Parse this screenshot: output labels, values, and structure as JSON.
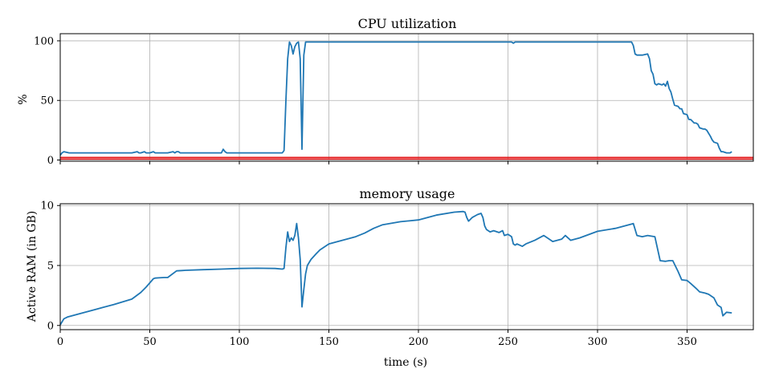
{
  "chart_data": [
    {
      "type": "line",
      "title": "CPU utilization",
      "xlabel": "",
      "ylabel": "%",
      "xlim": [
        0,
        387
      ],
      "ylim": [
        -1,
        106
      ],
      "xticks": [
        0,
        50,
        100,
        150,
        200,
        250,
        300,
        350
      ],
      "yticks": [
        0,
        50,
        100
      ],
      "xtick_labels_visible": false,
      "grid": true,
      "line_color": "#1f77b4",
      "reference_band": {
        "y0": 0.8,
        "y1": 2.2,
        "color": "#e41a1c"
      },
      "series": [
        {
          "x": [
            0,
            1,
            2,
            5,
            10,
            20,
            30,
            40,
            43,
            44,
            45,
            47,
            48,
            49,
            50,
            52,
            53,
            54,
            60,
            63,
            64,
            65,
            66,
            67,
            68,
            70,
            80,
            90,
            91,
            92,
            93,
            95,
            100,
            110,
            120,
            124,
            125,
            126,
            127,
            128,
            129,
            130,
            131,
            132,
            133,
            134,
            135,
            136,
            137,
            138,
            140,
            150,
            200,
            250,
            252,
            253,
            254,
            260,
            300,
            319,
            320,
            321,
            322,
            325,
            328,
            329,
            330,
            331,
            332,
            333,
            334,
            336,
            337,
            338,
            339,
            340,
            341,
            342,
            343,
            345,
            346,
            347,
            348,
            350,
            351,
            352,
            354,
            355,
            356,
            357,
            359,
            360,
            361,
            363,
            364,
            365,
            367,
            368,
            369,
            370,
            372,
            373,
            374,
            375
          ],
          "y": [
            4,
            6,
            7,
            6,
            6,
            6,
            6,
            6,
            7,
            6,
            6,
            7,
            6,
            6,
            6,
            7,
            6,
            6,
            6,
            7,
            6,
            7,
            7,
            6,
            6,
            6,
            6,
            6,
            9,
            7,
            6,
            6,
            6,
            6,
            6,
            6,
            8,
            50,
            85,
            99,
            96,
            89,
            95,
            98,
            99,
            85,
            9,
            88,
            99,
            99,
            99,
            99,
            99,
            99,
            99,
            98,
            99,
            99,
            99,
            99,
            96,
            89,
            88,
            88,
            89,
            85,
            75,
            72,
            64,
            63,
            64,
            63,
            64,
            62,
            66,
            60,
            57,
            51,
            46,
            45,
            43,
            43,
            39,
            38,
            34,
            34,
            31,
            31,
            30,
            27,
            26,
            26,
            25,
            20,
            17,
            15,
            14,
            10,
            7,
            7,
            6,
            6,
            6,
            7
          ]
        }
      ]
    },
    {
      "type": "line",
      "title": "memory usage",
      "xlabel": "time (s)",
      "ylabel": "Active RAM (in GB)",
      "xlim": [
        0,
        387
      ],
      "ylim": [
        -0.35,
        10.15
      ],
      "xticks": [
        0,
        50,
        100,
        150,
        200,
        250,
        300,
        350
      ],
      "yticks": [
        0,
        5,
        10
      ],
      "grid": true,
      "line_color": "#1f77b4",
      "series": [
        {
          "x": [
            0,
            2,
            4,
            10,
            20,
            30,
            40,
            45,
            48,
            52,
            53,
            55,
            58,
            60,
            65,
            68,
            70,
            80,
            90,
            100,
            110,
            120,
            124,
            125,
            126,
            127,
            128,
            129,
            130,
            131,
            132,
            133,
            134,
            135,
            136,
            137,
            138,
            140,
            143,
            145,
            150,
            155,
            160,
            165,
            170,
            175,
            180,
            190,
            200,
            210,
            220,
            225,
            226,
            227,
            228,
            230,
            233,
            235,
            236,
            237,
            238,
            240,
            242,
            245,
            247,
            248,
            250,
            252,
            253,
            254,
            255,
            258,
            260,
            265,
            270,
            272,
            275,
            280,
            282,
            285,
            290,
            300,
            310,
            320,
            322,
            325,
            328,
            330,
            332,
            335,
            338,
            340,
            342,
            345,
            347,
            350,
            352,
            355,
            357,
            360,
            362,
            365,
            367,
            369,
            370,
            372,
            375
          ],
          "y": [
            0.05,
            0.55,
            0.7,
            0.95,
            1.35,
            1.75,
            2.2,
            2.75,
            3.2,
            3.9,
            3.95,
            3.97,
            4.0,
            4.0,
            4.55,
            4.58,
            4.6,
            4.65,
            4.7,
            4.75,
            4.77,
            4.75,
            4.7,
            4.75,
            6.5,
            7.8,
            7.0,
            7.3,
            7.1,
            7.5,
            8.5,
            7.3,
            5.5,
            1.55,
            3.0,
            4.3,
            5.0,
            5.5,
            6.0,
            6.3,
            6.8,
            7.0,
            7.2,
            7.4,
            7.7,
            8.1,
            8.4,
            8.65,
            8.8,
            9.2,
            9.45,
            9.5,
            9.45,
            9.0,
            8.7,
            9.0,
            9.25,
            9.35,
            9.0,
            8.3,
            8.0,
            7.8,
            7.9,
            7.75,
            7.9,
            7.5,
            7.6,
            7.4,
            6.8,
            6.7,
            6.8,
            6.6,
            6.8,
            7.1,
            7.5,
            7.3,
            7.0,
            7.2,
            7.5,
            7.1,
            7.3,
            7.85,
            8.1,
            8.5,
            7.5,
            7.4,
            7.5,
            7.45,
            7.4,
            5.4,
            5.35,
            5.4,
            5.4,
            4.5,
            3.8,
            3.75,
            3.5,
            3.1,
            2.8,
            2.7,
            2.6,
            2.3,
            1.7,
            1.5,
            0.8,
            1.1,
            1.05
          ]
        }
      ]
    }
  ]
}
